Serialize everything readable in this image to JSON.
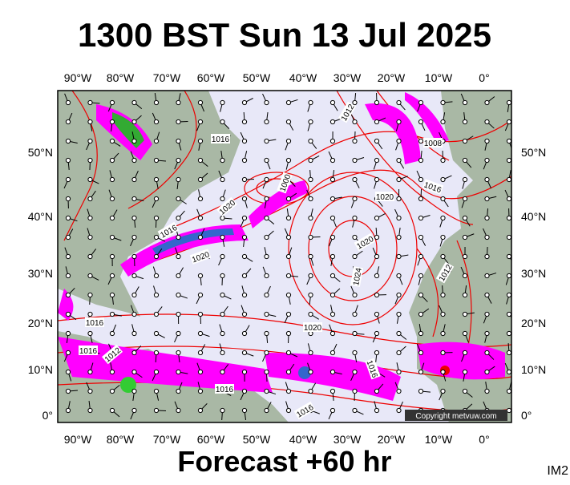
{
  "title": "1300 BST Sun 13 Jul 2025",
  "footer": "Forecast +60 hr",
  "image_id": "IM2",
  "copyright": "Copyright metvuw.com",
  "longitude_labels": [
    "90°W",
    "80°W",
    "70°W",
    "60°W",
    "50°W",
    "40°W",
    "30°W",
    "20°W",
    "10°W",
    "0°"
  ],
  "latitude_labels": [
    "50°N",
    "40°N",
    "30°N",
    "20°N",
    "10°N",
    "0°"
  ],
  "isobar_labels": [
    "1012",
    "1016",
    "1008",
    "1016",
    "1020",
    "1000",
    "1020",
    "1016",
    "1020",
    "1020",
    "1024",
    "1012",
    "1016",
    "1020",
    "1016",
    "1012",
    "1016",
    "1016",
    "1016"
  ]
}
